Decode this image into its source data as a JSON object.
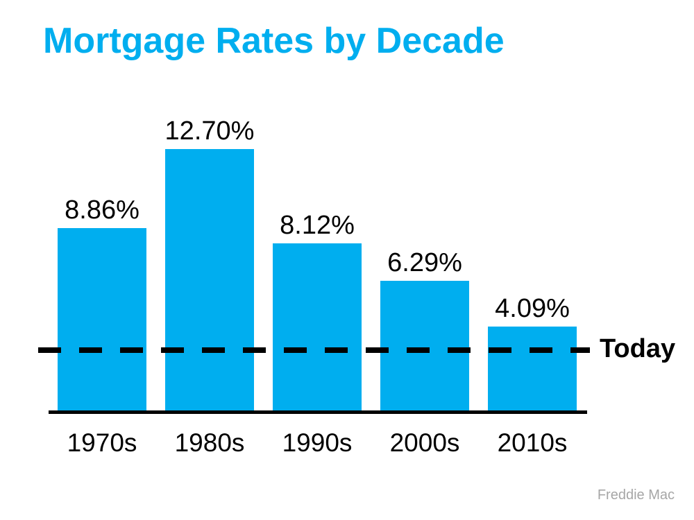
{
  "title": "Mortgage Rates by Decade",
  "source": "Freddie Mac",
  "colors": {
    "title": "#00AEEF",
    "bar": "#00AEEF",
    "axis": "#000000",
    "reference_line": "#000000",
    "source_text": "#a6a6a6"
  },
  "chart_data": {
    "type": "bar",
    "title": "Mortgage Rates by Decade",
    "categories": [
      "1970s",
      "1980s",
      "1990s",
      "2000s",
      "2010s"
    ],
    "values": [
      8.86,
      12.7,
      8.12,
      6.29,
      4.09
    ],
    "value_labels": [
      "8.86%",
      "12.70%",
      "8.12%",
      "6.29%",
      "4.09%"
    ],
    "xlabel": "",
    "ylabel": "",
    "ylim": [
      0,
      14
    ],
    "grid": false,
    "legend": false,
    "bar_color": "#00AEEF",
    "reference_line": {
      "label": "Today",
      "style": "dashed",
      "color": "#000000",
      "value_estimate": 2.9
    },
    "source": "Freddie Mac"
  }
}
